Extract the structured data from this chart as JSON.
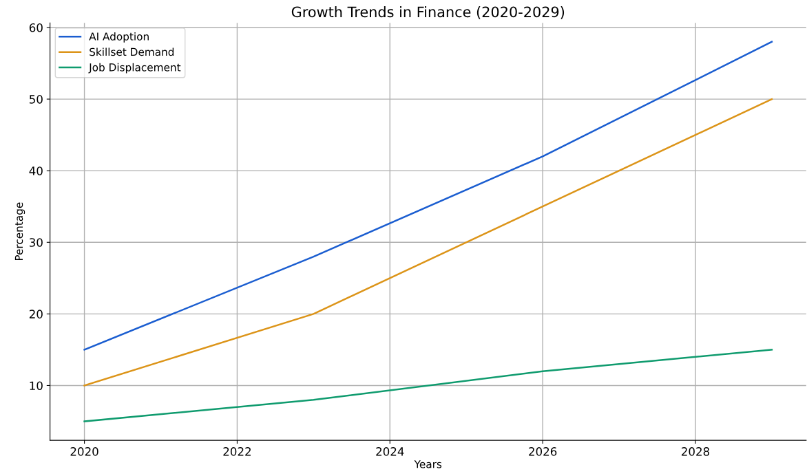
{
  "chart_data": {
    "type": "line",
    "title": "Growth Trends in Finance (2020-2029)",
    "xlabel": "Years",
    "ylabel": "Percentage",
    "series": [
      {
        "name": "AI Adoption",
        "color": "#1a5dd0",
        "x": [
          2020,
          2023,
          2026,
          2029
        ],
        "values": [
          15,
          28,
          42,
          58
        ]
      },
      {
        "name": "Skillset Demand",
        "color": "#dc9418",
        "x": [
          2020,
          2023,
          2026,
          2029
        ],
        "values": [
          10,
          20,
          35,
          50
        ]
      },
      {
        "name": "Job Displacement",
        "color": "#0f9b6e",
        "x": [
          2020,
          2023,
          2026,
          2029
        ],
        "values": [
          5,
          8,
          12,
          15
        ]
      }
    ],
    "xlim": [
      2019.55,
      2029.45
    ],
    "xticks": [
      2020,
      2022,
      2024,
      2026,
      2028
    ],
    "ylim": [
      2.35,
      60.65
    ],
    "yticks": [
      10,
      20,
      30,
      40,
      50,
      60
    ],
    "grid": true,
    "legend": "top left",
    "marker": "none",
    "line_style": "solid"
  }
}
